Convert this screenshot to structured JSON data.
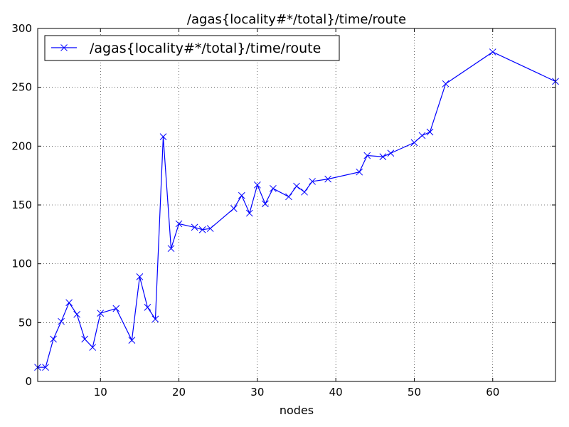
{
  "chart_data": {
    "type": "line",
    "title": "/agas{locality#*/total}/time/route",
    "xlabel": "nodes",
    "ylabel": "",
    "xlim": [
      2,
      68
    ],
    "ylim": [
      0,
      300
    ],
    "xticks": [
      10,
      20,
      30,
      40,
      50,
      60
    ],
    "yticks": [
      0,
      50,
      100,
      150,
      200,
      250,
      300
    ],
    "grid": true,
    "legend_position": "top-left",
    "series": [
      {
        "name": "/agas{locality#*/total}/time/route",
        "color": "#0000ff",
        "marker": "x",
        "x": [
          2,
          3,
          4,
          5,
          6,
          7,
          8,
          9,
          10,
          12,
          14,
          15,
          16,
          17,
          18,
          19,
          20,
          22,
          23,
          24,
          27,
          28,
          29,
          30,
          31,
          32,
          34,
          35,
          36,
          37,
          39,
          43,
          44,
          46,
          47,
          50,
          51,
          52,
          54,
          60,
          68
        ],
        "y": [
          12,
          12,
          36,
          51,
          67,
          57,
          36,
          29,
          58,
          62,
          35,
          89,
          63,
          53,
          208,
          113,
          134,
          131,
          129,
          130,
          147,
          158,
          143,
          167,
          151,
          164,
          157,
          166,
          161,
          170,
          172,
          178,
          192,
          191,
          194,
          203,
          209,
          212,
          253,
          280,
          255
        ]
      }
    ]
  }
}
